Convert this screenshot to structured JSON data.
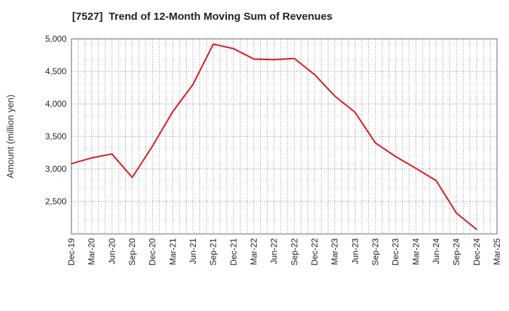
{
  "chart_data": {
    "type": "line",
    "title": "[7527]  Trend of 12-Month Moving Sum of Revenues",
    "xlabel": "",
    "ylabel": "Amount (million yen)",
    "x_tick_labels": [
      "Dec-19",
      "Mar-20",
      "Jun-20",
      "Sep-20",
      "Dec-20",
      "Mar-21",
      "Jun-21",
      "Sep-21",
      "Dec-21",
      "Mar-22",
      "Jun-22",
      "Sep-22",
      "Dec-22",
      "Mar-23",
      "Jun-23",
      "Sep-23",
      "Dec-23",
      "Mar-24",
      "Jun-24",
      "Sep-24",
      "Dec-24",
      "Mar-25"
    ],
    "y_ticks": [
      2500,
      3000,
      3500,
      4000,
      4500,
      5000
    ],
    "y_tick_labels": [
      "2,500",
      "3,000",
      "3,500",
      "4,000",
      "4,500",
      "5,000"
    ],
    "ylim": [
      2000,
      5000
    ],
    "grid": true,
    "line_color": "#e0141e",
    "series": [
      {
        "x": [
          "Dec-19",
          "Mar-20",
          "Jun-20",
          "Sep-20",
          "Dec-20",
          "Mar-21",
          "Jun-21",
          "Sep-21",
          "Dec-21",
          "Mar-22",
          "Jun-22",
          "Sep-22",
          "Dec-22",
          "Mar-23",
          "Jun-23",
          "Sep-23",
          "Dec-23",
          "Mar-24",
          "Jun-24",
          "Sep-24",
          "Dec-24"
        ],
        "values": [
          3080,
          3170,
          3230,
          2870,
          3350,
          3880,
          4300,
          4920,
          4850,
          4690,
          4680,
          4700,
          4450,
          4120,
          3870,
          3400,
          3190,
          3010,
          2820,
          2320,
          2070
        ]
      }
    ]
  }
}
